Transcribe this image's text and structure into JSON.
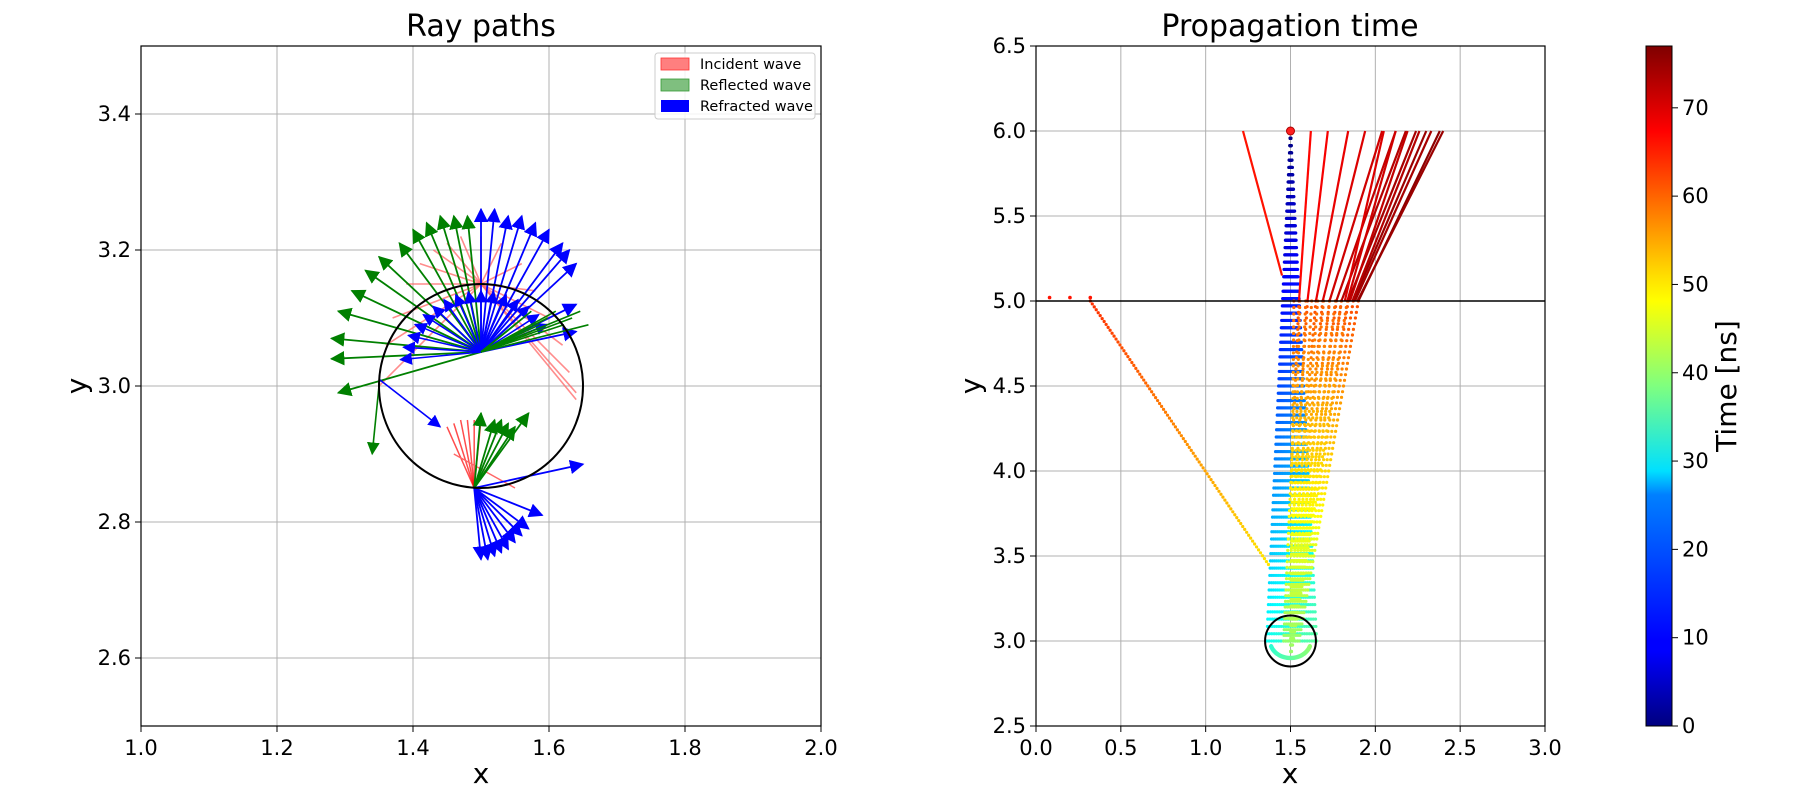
{
  "left": {
    "title": "Ray paths",
    "xlabel": "x",
    "ylabel": "y",
    "legend": [
      {
        "label": "Incident wave",
        "color": "#ff7f7f"
      },
      {
        "label": "Reflected wave",
        "color": "#7fbf7f"
      },
      {
        "label": "Refracted wave",
        "color": "#0000ff"
      }
    ]
  },
  "right": {
    "title": "Propagation time",
    "xlabel": "x",
    "ylabel": "y"
  },
  "colorbar": {
    "label": "Time [ns]"
  },
  "chart_data": [
    {
      "type": "line",
      "title": "Ray paths",
      "xlabel": "x",
      "ylabel": "y",
      "xlim": [
        1.0,
        2.0
      ],
      "ylim": [
        2.5,
        3.5
      ],
      "xticks": [
        "1.0",
        "1.2",
        "1.4",
        "1.6",
        "1.8",
        "2.0"
      ],
      "yticks": [
        "2.6",
        "2.8",
        "3.0",
        "3.2",
        "3.4"
      ],
      "grid": true,
      "legend_position": "top-right",
      "circle": {
        "cx": 1.5,
        "cy": 3.0,
        "r": 0.15
      },
      "series": [
        {
          "name": "Incident wave",
          "color": "#ff6666"
        },
        {
          "name": "Reflected wave",
          "color": "#008000"
        },
        {
          "name": "Refracted wave",
          "color": "#0000ff"
        }
      ],
      "upper_fan": {
        "ray_start": [
          1.5,
          3.15
        ],
        "incident_starts": [
          [
            1.35,
            3.0
          ],
          [
            1.36,
            3.06
          ],
          [
            1.37,
            3.1
          ],
          [
            1.39,
            3.15
          ],
          [
            1.41,
            3.18
          ],
          [
            1.43,
            3.2
          ],
          [
            1.45,
            3.21
          ],
          [
            1.47,
            3.22
          ],
          [
            1.5,
            3.22
          ],
          [
            1.53,
            3.21
          ],
          [
            1.56,
            3.18
          ],
          [
            1.58,
            3.14
          ],
          [
            1.6,
            3.1
          ],
          [
            1.62,
            3.06
          ],
          [
            1.63,
            3.02
          ],
          [
            1.64,
            2.99
          ],
          [
            1.64,
            2.98
          ]
        ],
        "reflected_tips": [
          [
            1.29,
            2.99
          ],
          [
            1.28,
            3.04
          ],
          [
            1.28,
            3.07
          ],
          [
            1.29,
            3.11
          ],
          [
            1.31,
            3.14
          ],
          [
            1.33,
            3.17
          ],
          [
            1.35,
            3.19
          ],
          [
            1.38,
            3.21
          ],
          [
            1.4,
            3.23
          ],
          [
            1.42,
            3.24
          ],
          [
            1.44,
            3.25
          ],
          [
            1.46,
            3.25
          ],
          [
            1.48,
            3.25
          ]
        ],
        "refracted_from": [
          1.5,
          3.05
        ],
        "refracted_tips": [
          [
            1.5,
            3.26
          ],
          [
            1.52,
            3.26
          ],
          [
            1.54,
            3.25
          ],
          [
            1.56,
            3.25
          ],
          [
            1.58,
            3.24
          ],
          [
            1.6,
            3.23
          ],
          [
            1.62,
            3.21
          ],
          [
            1.63,
            3.2
          ],
          [
            1.64,
            3.18
          ],
          [
            1.64,
            3.12
          ],
          [
            1.64,
            3.08
          ]
        ]
      },
      "lower_fan": {
        "focus": [
          1.49,
          2.85
        ],
        "incident_starts": [
          [
            1.45,
            2.94
          ],
          [
            1.46,
            2.945
          ],
          [
            1.47,
            2.95
          ],
          [
            1.48,
            2.95
          ],
          [
            1.49,
            2.95
          ],
          [
            1.5,
            2.95
          ]
        ],
        "reflected_tips": [
          [
            1.5,
            2.96
          ],
          [
            1.52,
            2.95
          ],
          [
            1.53,
            2.95
          ],
          [
            1.54,
            2.945
          ],
          [
            1.55,
            2.94
          ],
          [
            1.57,
            2.96
          ]
        ],
        "refracted_tips": [
          [
            1.5,
            2.745
          ],
          [
            1.51,
            2.745
          ],
          [
            1.52,
            2.75
          ],
          [
            1.53,
            2.755
          ],
          [
            1.54,
            2.76
          ],
          [
            1.55,
            2.77
          ],
          [
            1.56,
            2.78
          ],
          [
            1.57,
            2.79
          ],
          [
            1.59,
            2.81
          ],
          [
            1.65,
            2.885
          ]
        ]
      }
    },
    {
      "type": "scatter",
      "title": "Propagation time",
      "xlabel": "x",
      "ylabel": "y",
      "xlim": [
        0.0,
        3.0
      ],
      "ylim": [
        2.5,
        6.5
      ],
      "xticks": [
        "0.0",
        "0.5",
        "1.0",
        "1.5",
        "2.0",
        "2.5",
        "3.0"
      ],
      "yticks": [
        "2.5",
        "3.0",
        "3.5",
        "4.0",
        "4.5",
        "5.0",
        "5.5",
        "6.0",
        "6.5"
      ],
      "grid": true,
      "interface_y": 5.0,
      "source": [
        1.5,
        6.0
      ],
      "circle": {
        "cx": 1.5,
        "cy": 3.0,
        "r": 0.15
      },
      "ray_paths": [
        {
          "exit_x": 1.22,
          "top_x": 1.22,
          "via": [
            [
              1.45,
              5.15
            ]
          ]
        },
        {
          "exit_x": 1.55,
          "top_x": 1.62
        },
        {
          "exit_x": 1.6,
          "top_x": 1.72
        },
        {
          "exit_x": 1.65,
          "top_x": 1.84
        },
        {
          "exit_x": 1.69,
          "top_x": 1.94
        },
        {
          "exit_x": 1.73,
          "top_x": 2.04
        },
        {
          "exit_x": 1.77,
          "top_x": 2.12
        },
        {
          "exit_x": 1.8,
          "top_x": 2.18
        },
        {
          "exit_x": 1.84,
          "top_x": 2.24
        },
        {
          "exit_x": 1.87,
          "top_x": 2.3
        },
        {
          "exit_x": 1.9,
          "top_x": 2.38
        }
      ],
      "oblique_ray": {
        "from": [
          1.37,
          3.45
        ],
        "to": [
          0.32,
          5.0
        ],
        "surface_points": [
          0.08,
          0.2,
          0.32
        ]
      }
    },
    {
      "type": "heatmap",
      "title": "",
      "ylabel": "Time [ns]",
      "colormap": "jet",
      "range": [
        0,
        77
      ],
      "ticks": [
        "0",
        "10",
        "20",
        "30",
        "40",
        "50",
        "60",
        "70"
      ]
    }
  ]
}
